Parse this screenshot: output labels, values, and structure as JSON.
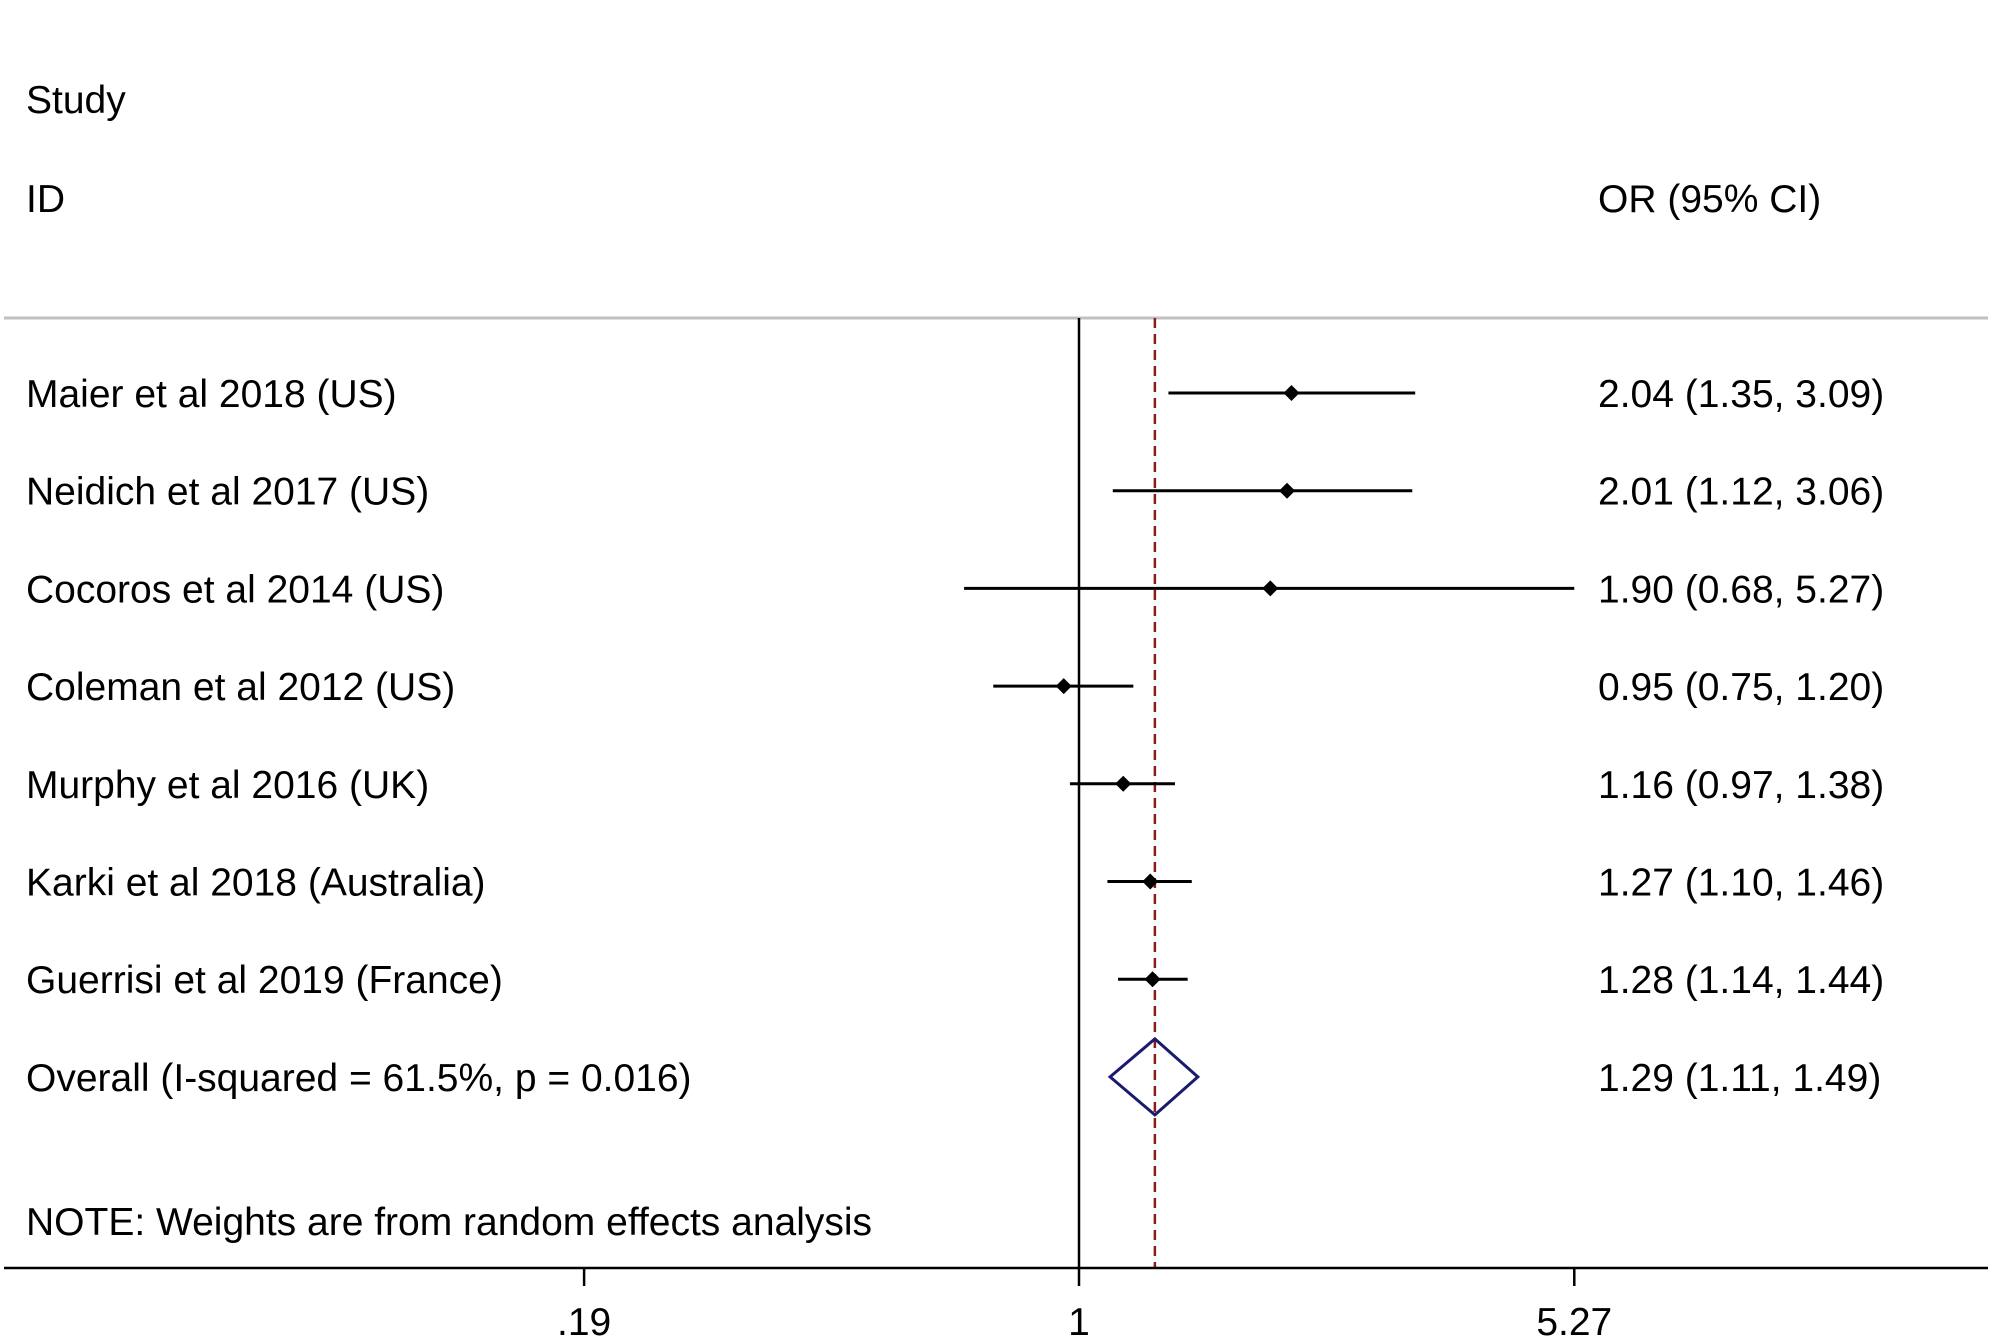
{
  "header": {
    "study_label": "Study",
    "id_label": "ID",
    "effect_label": "OR (95% CI)"
  },
  "note": "NOTE: Weights are from random effects analysis",
  "colors": {
    "point": "#000000",
    "ci_line": "#000000",
    "overall_diamond": "#1a1a6e",
    "overall_line": "#8b1a1a",
    "divider": "#c0c0c0"
  },
  "chart_data": {
    "type": "forest",
    "scale": "log",
    "null_value": 1,
    "overall_line_value": 1.29,
    "xlim": [
      0.06,
      28
    ],
    "x_ticks": [
      {
        "value": 0.19,
        "label": ".19"
      },
      {
        "value": 1,
        "label": "1"
      },
      {
        "value": 5.27,
        "label": "5.27"
      }
    ],
    "studies": [
      {
        "label": "Maier et al 2018 (US)",
        "or": 2.04,
        "lower": 1.35,
        "upper": 3.09,
        "text": "2.04 (1.35, 3.09)"
      },
      {
        "label": "Neidich et al 2017 (US)",
        "or": 2.01,
        "lower": 1.12,
        "upper": 3.06,
        "text": "2.01 (1.12, 3.06)"
      },
      {
        "label": "Cocoros et al 2014 (US)",
        "or": 1.9,
        "lower": 0.68,
        "upper": 5.27,
        "text": "1.90 (0.68, 5.27)"
      },
      {
        "label": "Coleman et al 2012 (US)",
        "or": 0.95,
        "lower": 0.75,
        "upper": 1.2,
        "text": "0.95 (0.75, 1.20)"
      },
      {
        "label": "Murphy et al 2016 (UK)",
        "or": 1.16,
        "lower": 0.97,
        "upper": 1.38,
        "text": "1.16 (0.97, 1.38)"
      },
      {
        "label": "Karki et al 2018  (Australia)",
        "or": 1.27,
        "lower": 1.1,
        "upper": 1.46,
        "text": "1.27 (1.10, 1.46)"
      },
      {
        "label": "Guerrisi et al 2019 (France)",
        "or": 1.28,
        "lower": 1.14,
        "upper": 1.44,
        "text": "1.28 (1.14, 1.44)"
      }
    ],
    "overall": {
      "label": "Overall  (I-squared = 61.5%, p = 0.016)",
      "or": 1.29,
      "lower": 1.11,
      "upper": 1.49,
      "text": "1.29 (1.11, 1.49)"
    }
  }
}
